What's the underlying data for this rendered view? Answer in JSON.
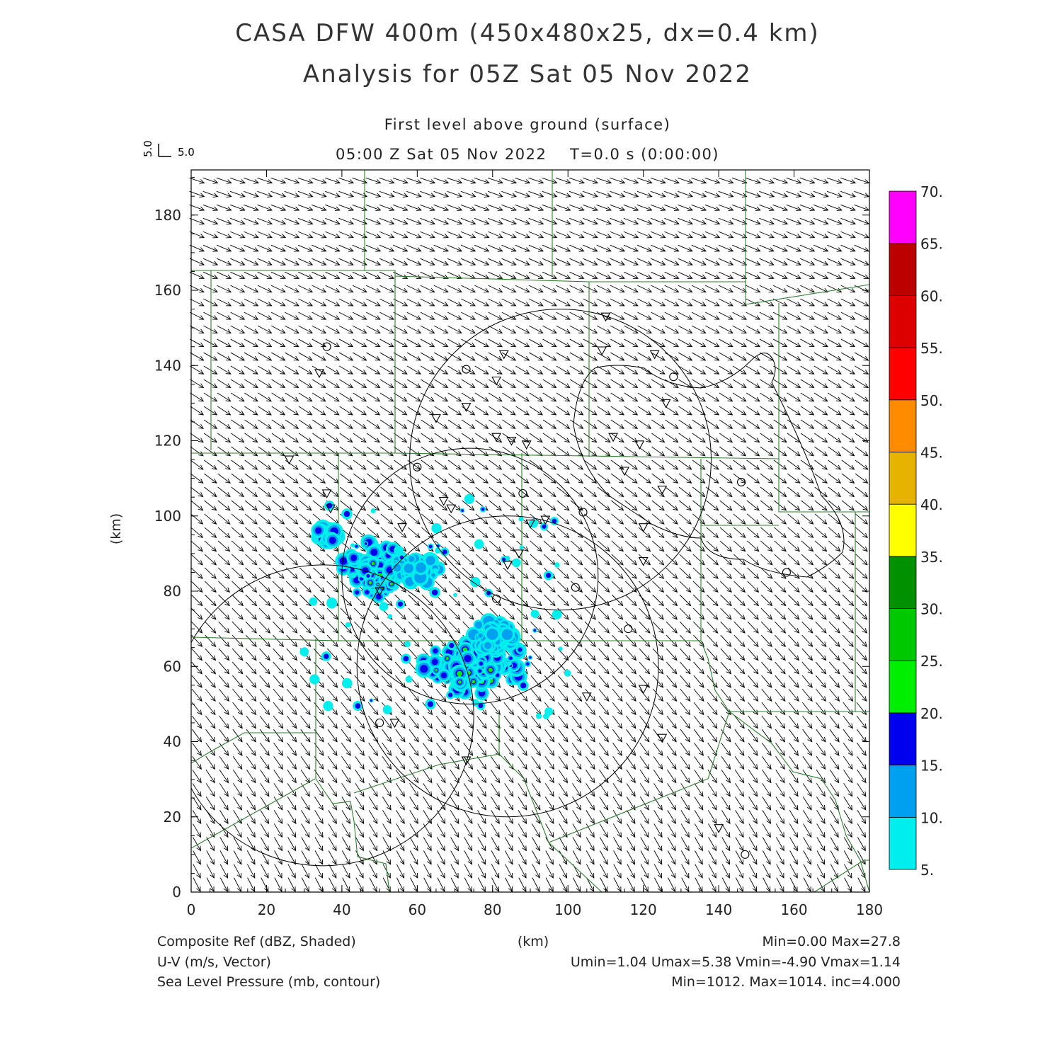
{
  "title_line1": "CASA DFW 400m (450x480x25, dx=0.4 km)",
  "title_line2": "Analysis for 05Z Sat 05 Nov 2022",
  "subtitle_level": "First level above ground (surface)",
  "subtitle_time": "05:00 Z Sat 05 Nov 2022    T=0.0 s (0:00:00)",
  "vector_key": {
    "u_label": "5.0",
    "v_label": "5.0"
  },
  "footer": {
    "left": [
      "Composite Ref (dBZ, Shaded)",
      "U-V (m/s, Vector)",
      "Sea Level Pressure (mb, contour)"
    ],
    "center": "(km)",
    "right": [
      "Min=0.00 Max=27.8",
      "Umin=1.04 Umax=5.38 Vmin=-4.90 Vmax=1.14",
      "Min=1012. Max=1014. inc=4.000"
    ]
  },
  "chart_data": {
    "type": "heatmap",
    "xlabel": "(km)",
    "ylabel": "(km)",
    "xlim": [
      0,
      180
    ],
    "ylim": [
      0,
      192
    ],
    "xticks": [
      "0",
      "20",
      "40",
      "60",
      "80",
      "100",
      "120",
      "140",
      "160",
      "180"
    ],
    "yticks": [
      "0",
      "20",
      "40",
      "60",
      "80",
      "100",
      "120",
      "140",
      "160",
      "180"
    ],
    "colorbar": {
      "labels": [
        "5.",
        "10.",
        "15.",
        "20.",
        "25.",
        "30.",
        "35.",
        "40.",
        "45.",
        "50.",
        "55.",
        "60.",
        "65.",
        "70."
      ],
      "colors": [
        "#00eeee",
        "#00a0f0",
        "#0000ee",
        "#00ee00",
        "#00c800",
        "#009000",
        "#ffff00",
        "#e6b400",
        "#ff8c00",
        "#ff0000",
        "#dc0000",
        "#bc0000",
        "#ff00ff"
      ]
    },
    "reflectivity_cells": [
      {
        "x": 48,
        "y": 86,
        "rx": 8,
        "ry": 8,
        "level": 2
      },
      {
        "x": 50,
        "y": 84,
        "rx": 5,
        "ry": 4,
        "level": 3
      },
      {
        "x": 36,
        "y": 95,
        "rx": 3,
        "ry": 2,
        "level": 2
      },
      {
        "x": 76,
        "y": 60,
        "rx": 15,
        "ry": 8,
        "level": 2
      },
      {
        "x": 74,
        "y": 60,
        "rx": 10,
        "ry": 5,
        "level": 3
      },
      {
        "x": 80,
        "y": 68,
        "rx": 6,
        "ry": 4,
        "level": 1
      },
      {
        "x": 60,
        "y": 86,
        "rx": 6,
        "ry": 4,
        "level": 1
      }
    ],
    "radar_rings_km": [
      {
        "cx": 35,
        "cy": 47,
        "r": 40
      },
      {
        "cx": 74,
        "cy": 84,
        "r": 34
      },
      {
        "cx": 98,
        "cy": 115,
        "r": 40
      },
      {
        "cx": 84,
        "cy": 60,
        "r": 40
      }
    ]
  }
}
